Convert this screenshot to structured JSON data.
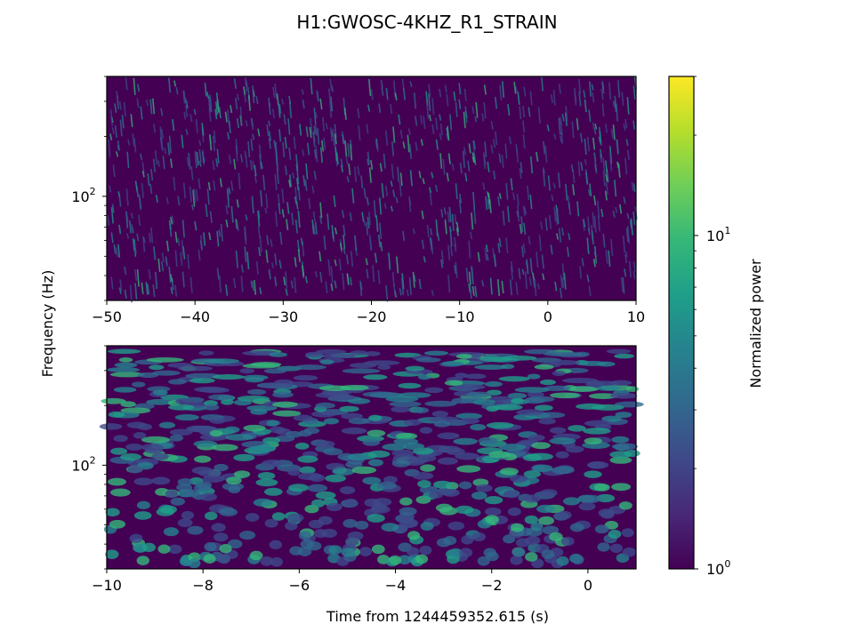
{
  "chart_data": {
    "type": "heatmap",
    "title": "H1:GWOSC-4KHZ_R1_STRAIN",
    "ylabel": "Frequency (Hz)",
    "xlabel": "Time from 1244459352.615 (s)",
    "colorbar": {
      "label": "Normalized power",
      "scale": "log",
      "range": [
        1,
        30
      ],
      "ticks": [
        {
          "value": 1,
          "base": "10",
          "exp": "0"
        },
        {
          "value": 10,
          "base": "10",
          "exp": "1"
        }
      ],
      "colormap": [
        "#440154",
        "#482878",
        "#3e4989",
        "#31688e",
        "#26828e",
        "#1f9e89",
        "#35b779",
        "#6ece58",
        "#b5de2b",
        "#fde725"
      ]
    },
    "panels": [
      {
        "name": "top",
        "xlim": [
          -50,
          10
        ],
        "xticks": [
          -50,
          -40,
          -30,
          -20,
          -10,
          0,
          10
        ],
        "xtick_labels": [
          "−50",
          "−40",
          "−30",
          "−20",
          "−10",
          "0",
          "10"
        ],
        "yscale": "log",
        "ylim": [
          30,
          400
        ],
        "yticks": [
          {
            "value": 100,
            "base": "10",
            "exp": "2"
          }
        ],
        "texture": "fine"
      },
      {
        "name": "bottom",
        "xlim": [
          -10,
          1
        ],
        "xticks": [
          -10,
          -8,
          -6,
          -4,
          -2,
          0
        ],
        "xtick_labels": [
          "−10",
          "−8",
          "−6",
          "−4",
          "−2",
          "0"
        ],
        "yscale": "log",
        "ylim": [
          30,
          400
        ],
        "yticks": [
          {
            "value": 100,
            "base": "10",
            "exp": "2"
          }
        ],
        "texture": "coarse"
      }
    ]
  }
}
